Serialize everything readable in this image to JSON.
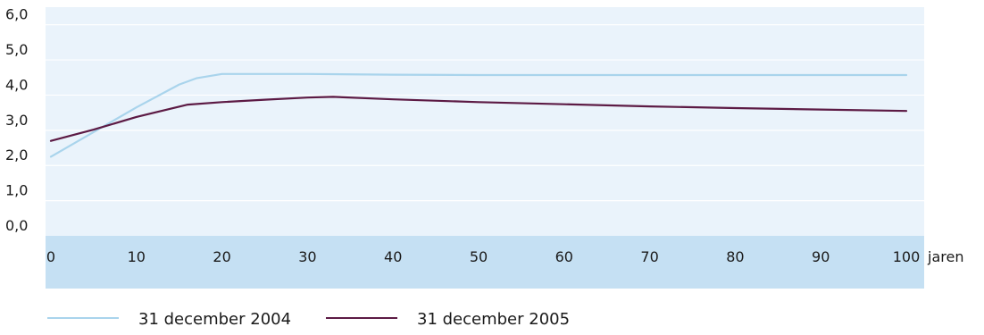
{
  "chart_data": {
    "type": "line",
    "title": "",
    "xlabel": "jaren",
    "ylabel": "",
    "xlim": [
      0,
      100
    ],
    "ylim": [
      0,
      6.5
    ],
    "x_ticks": [
      "0",
      "10",
      "20",
      "30",
      "40",
      "50",
      "60",
      "70",
      "80",
      "90",
      "100"
    ],
    "y_ticks": [
      "0,0",
      "1,0",
      "2,0",
      "3,0",
      "4,0",
      "5,0",
      "6,0"
    ],
    "grid": true,
    "legend_position": "bottom",
    "series": [
      {
        "name": "31 december 2004",
        "color": "#a9d4ec",
        "x": [
          0,
          5,
          10,
          15,
          17,
          20,
          25,
          30,
          40,
          50,
          60,
          70,
          80,
          90,
          100
        ],
        "y": [
          2.25,
          2.95,
          3.65,
          4.3,
          4.48,
          4.6,
          4.6,
          4.6,
          4.58,
          4.57,
          4.57,
          4.57,
          4.57,
          4.57,
          4.57
        ]
      },
      {
        "name": "31 december 2005",
        "color": "#5c1a44",
        "x": [
          0,
          5,
          10,
          16,
          20,
          25,
          30,
          33,
          40,
          50,
          60,
          70,
          80,
          90,
          100
        ],
        "y": [
          2.7,
          3.02,
          3.38,
          3.73,
          3.8,
          3.87,
          3.93,
          3.95,
          3.88,
          3.8,
          3.74,
          3.68,
          3.63,
          3.59,
          3.55
        ]
      }
    ]
  }
}
